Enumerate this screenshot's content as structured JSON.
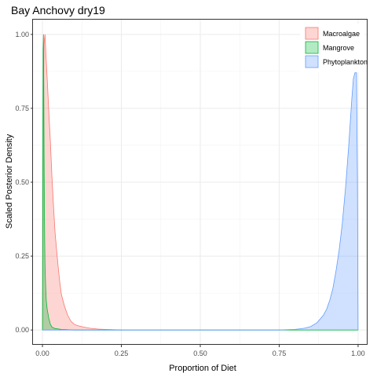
{
  "chart_data": {
    "type": "area",
    "title": "Bay Anchovy dry19",
    "xlabel": "Proportion of Diet",
    "ylabel": "Scaled Posterior Density",
    "xlim": [
      -0.03,
      1.03
    ],
    "ylim": [
      -0.05,
      1.05
    ],
    "x_ticks": [
      "0.00",
      "0.25",
      "0.50",
      "0.75",
      "1.00"
    ],
    "y_ticks": [
      "0.00",
      "0.25",
      "0.50",
      "0.75",
      "1.00"
    ],
    "grid": true,
    "legend_position": "top-right",
    "series": [
      {
        "name": "Macroalgae",
        "stroke": "#f8766d",
        "fill": "#f8766d",
        "points": [
          [
            0.0,
            0.0
          ],
          [
            0.003,
            0.8
          ],
          [
            0.005,
            0.97
          ],
          [
            0.008,
            1.0
          ],
          [
            0.011,
            0.93
          ],
          [
            0.015,
            0.85
          ],
          [
            0.02,
            0.74
          ],
          [
            0.025,
            0.64
          ],
          [
            0.03,
            0.52
          ],
          [
            0.035,
            0.42
          ],
          [
            0.04,
            0.33
          ],
          [
            0.045,
            0.27
          ],
          [
            0.05,
            0.21
          ],
          [
            0.055,
            0.16
          ],
          [
            0.06,
            0.12
          ],
          [
            0.07,
            0.08
          ],
          [
            0.08,
            0.05
          ],
          [
            0.09,
            0.03
          ],
          [
            0.1,
            0.02
          ],
          [
            0.11,
            0.015
          ],
          [
            0.13,
            0.01
          ],
          [
            0.15,
            0.006
          ],
          [
            0.18,
            0.003
          ],
          [
            0.2,
            0.002
          ],
          [
            0.25,
            0.0
          ]
        ]
      },
      {
        "name": "Mangrove",
        "stroke": "#00ba38",
        "fill": "#00ba38",
        "points": [
          [
            0.0,
            0.0
          ],
          [
            0.001,
            0.6
          ],
          [
            0.002,
            0.95
          ],
          [
            0.003,
            1.0
          ],
          [
            0.004,
            0.85
          ],
          [
            0.005,
            0.6
          ],
          [
            0.006,
            0.42
          ],
          [
            0.007,
            0.3
          ],
          [
            0.008,
            0.22
          ],
          [
            0.01,
            0.15
          ],
          [
            0.012,
            0.1
          ],
          [
            0.015,
            0.07
          ],
          [
            0.02,
            0.04
          ],
          [
            0.025,
            0.02
          ],
          [
            0.03,
            0.01
          ],
          [
            0.04,
            0.005
          ],
          [
            0.06,
            0.002
          ],
          [
            0.1,
            0.0
          ],
          [
            1.0,
            0.0
          ]
        ]
      },
      {
        "name": "Phytoplankton",
        "stroke": "#619cff",
        "fill": "#619cff",
        "points": [
          [
            0.0,
            0.0
          ],
          [
            0.75,
            0.0
          ],
          [
            0.8,
            0.002
          ],
          [
            0.83,
            0.006
          ],
          [
            0.85,
            0.012
          ],
          [
            0.87,
            0.025
          ],
          [
            0.89,
            0.05
          ],
          [
            0.9,
            0.07
          ],
          [
            0.91,
            0.1
          ],
          [
            0.92,
            0.14
          ],
          [
            0.93,
            0.2
          ],
          [
            0.94,
            0.27
          ],
          [
            0.95,
            0.36
          ],
          [
            0.96,
            0.48
          ],
          [
            0.97,
            0.62
          ],
          [
            0.975,
            0.7
          ],
          [
            0.98,
            0.78
          ],
          [
            0.985,
            0.85
          ],
          [
            0.99,
            0.87
          ],
          [
            0.995,
            0.87
          ],
          [
            0.998,
            0.51
          ],
          [
            1.0,
            0.0
          ]
        ]
      }
    ]
  }
}
